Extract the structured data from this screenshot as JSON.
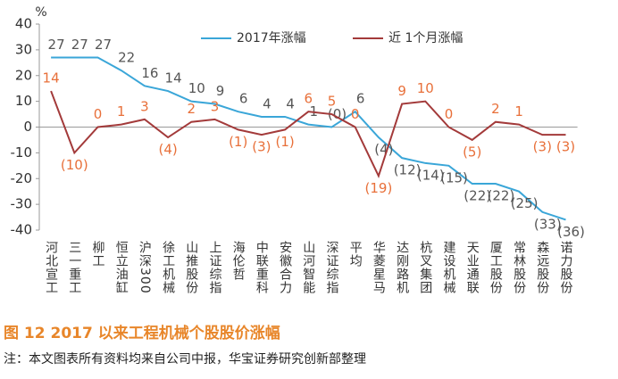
{
  "chart_data": {
    "type": "line",
    "unit_label": "%",
    "categories": [
      "河北宣工",
      "三一重工",
      "柳工",
      "恒立油缸",
      "沪深300",
      "徐工机械",
      "山推股份",
      "上证综指",
      "海伦哲",
      "中联重科",
      "安徽合力",
      "山河智能",
      "深证综指",
      "平均",
      "华菱星马",
      "达刚路机",
      "杭叉集团",
      "建设机械",
      "天业通联",
      "厦工股份",
      "常林股份",
      "森远股份",
      "诺力股份"
    ],
    "series": [
      {
        "name": "2017年涨幅",
        "color": "#3aa6d8",
        "label_color": "#555555",
        "values": [
          27,
          27,
          27,
          22,
          16,
          14,
          10,
          9,
          6,
          4,
          4,
          1,
          0,
          6,
          -4,
          -12,
          -14,
          -15,
          -22,
          -22,
          -25,
          -33,
          -36
        ],
        "value_labels": [
          "27",
          "27",
          "27",
          "22",
          "16",
          "14",
          "10",
          "9",
          "6",
          "4",
          "4",
          "1",
          "(0)",
          "6",
          "(4)",
          "(12)",
          "(14)",
          "(15)",
          "(22)",
          "(22)",
          "(25)",
          "(33)",
          "(36)"
        ]
      },
      {
        "name": "近 1个月涨幅",
        "color": "#a33a3a",
        "label_color": "#e8703a",
        "values": [
          14,
          -10,
          0,
          1,
          3,
          -4,
          2,
          3,
          -1,
          -3,
          -1,
          6,
          5,
          0,
          -19,
          9,
          10,
          0,
          -5,
          2,
          1,
          -3,
          -3
        ],
        "value_labels": [
          "14",
          "(10)",
          "0",
          "1",
          "3",
          "(4)",
          "2",
          "3",
          "(1)",
          "(3)",
          "(1)",
          "6",
          "5",
          "0",
          "(19)",
          "9",
          "10",
          "0",
          "(5)",
          "2",
          "1",
          "(3)",
          "(3)"
        ]
      }
    ],
    "ylim": [
      -40,
      40
    ],
    "yticks": [
      -40,
      -30,
      -20,
      -10,
      0,
      10,
      20,
      30,
      40
    ]
  },
  "caption": "图 12  2017 以来工程机械个股股价涨幅",
  "note": "注：本文图表所有资料均来自公司中报，华宝证券研究创新部整理"
}
